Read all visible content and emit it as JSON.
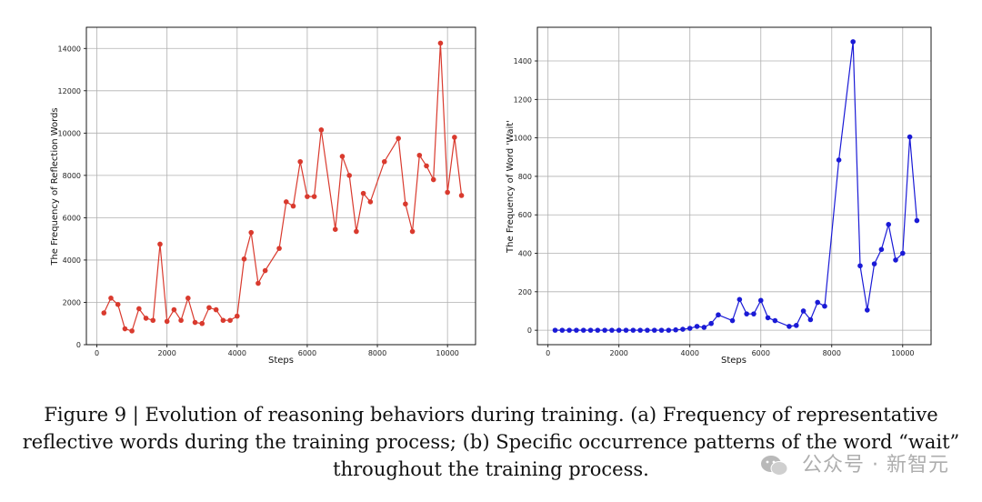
{
  "chart_data": [
    {
      "type": "line",
      "id": "a",
      "xlabel": "Steps",
      "ylabel": "The Frequency of Reflection Words",
      "xlim": [
        -300,
        10800
      ],
      "ylim": [
        0,
        15000
      ],
      "xticks": [
        0,
        2000,
        4000,
        6000,
        8000,
        10000
      ],
      "yticks": [
        0,
        2000,
        4000,
        6000,
        8000,
        10000,
        12000,
        14000
      ],
      "color": "#d93a2e",
      "x": [
        200,
        400,
        600,
        800,
        1000,
        1200,
        1400,
        1600,
        1800,
        2000,
        2200,
        2400,
        2600,
        2800,
        3000,
        3200,
        3400,
        3600,
        3800,
        4000,
        4200,
        4400,
        4600,
        4800,
        5200,
        5400,
        5600,
        5800,
        6000,
        6200,
        6400,
        6800,
        7000,
        7200,
        7400,
        7600,
        7800,
        8200,
        8600,
        8800,
        9000,
        9200,
        9400,
        9600,
        9800,
        10000,
        10200,
        10400
      ],
      "y": [
        1500,
        2200,
        1900,
        750,
        650,
        1700,
        1250,
        1150,
        4750,
        1100,
        1650,
        1150,
        2200,
        1050,
        1000,
        1750,
        1650,
        1150,
        1150,
        1350,
        4050,
        5300,
        2900,
        3500,
        4550,
        6750,
        6550,
        8650,
        7000,
        7000,
        10150,
        5450,
        8900,
        8000,
        5350,
        7150,
        6750,
        8650,
        9750,
        6650,
        5350,
        8950,
        8450,
        7800,
        14250,
        7200,
        9800,
        7050
      ]
    },
    {
      "type": "line",
      "id": "b",
      "xlabel": "Steps",
      "ylabel": "The Frequency of Word 'Wait'",
      "xlim": [
        -300,
        10800
      ],
      "ylim": [
        -75,
        1575
      ],
      "xticks": [
        0,
        2000,
        4000,
        6000,
        8000,
        10000
      ],
      "yticks": [
        0,
        200,
        400,
        600,
        800,
        1000,
        1200,
        1400
      ],
      "color": "#1a1ad6",
      "x": [
        200,
        400,
        600,
        800,
        1000,
        1200,
        1400,
        1600,
        1800,
        2000,
        2200,
        2400,
        2600,
        2800,
        3000,
        3200,
        3400,
        3600,
        3800,
        4000,
        4200,
        4400,
        4600,
        4800,
        5200,
        5400,
        5600,
        5800,
        6000,
        6200,
        6400,
        6800,
        7000,
        7200,
        7400,
        7600,
        7800,
        8200,
        8600,
        8800,
        9000,
        9200,
        9400,
        9600,
        9800,
        10000,
        10200,
        10400
      ],
      "y": [
        0,
        0,
        0,
        0,
        0,
        0,
        0,
        0,
        0,
        0,
        0,
        0,
        0,
        0,
        0,
        0,
        0,
        2,
        5,
        10,
        20,
        15,
        35,
        80,
        50,
        160,
        85,
        85,
        155,
        65,
        50,
        20,
        25,
        100,
        55,
        145,
        125,
        885,
        1500,
        335,
        105,
        345,
        420,
        550,
        365,
        400,
        1005,
        570
      ]
    }
  ],
  "caption": {
    "line1": "Figure 9 | Evolution of reasoning behaviors during training. (a) Frequency of representative",
    "line2": "reflective words during the training process; (b) Specific occurrence patterns of the word “wait”",
    "line3": "throughout the training process."
  },
  "watermark": "公众号 · 新智元"
}
